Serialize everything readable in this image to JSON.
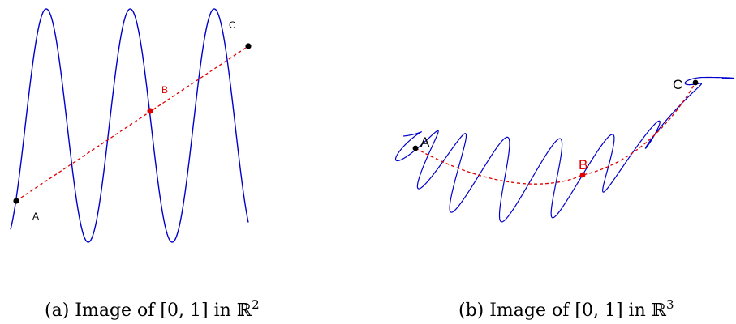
{
  "panel_a": {
    "labels": {
      "A": "A",
      "B": "B",
      "C": "C"
    },
    "caption": {
      "prefix": "(a) Image of ",
      "interval": "[0, 1]",
      "mid": " in ",
      "space": "ℝ",
      "exponent": "2"
    }
  },
  "panel_b": {
    "labels": {
      "A": "A",
      "B": "B",
      "C": "C"
    },
    "caption": {
      "prefix": "(b) Image of ",
      "interval": "[0, 1]",
      "mid": " in ",
      "space": "ℝ",
      "exponent": "3"
    }
  },
  "colors": {
    "curve": "#0000cc",
    "chord": "#e00000",
    "endpoint": "#000000",
    "midpoint": "#e00000"
  }
}
